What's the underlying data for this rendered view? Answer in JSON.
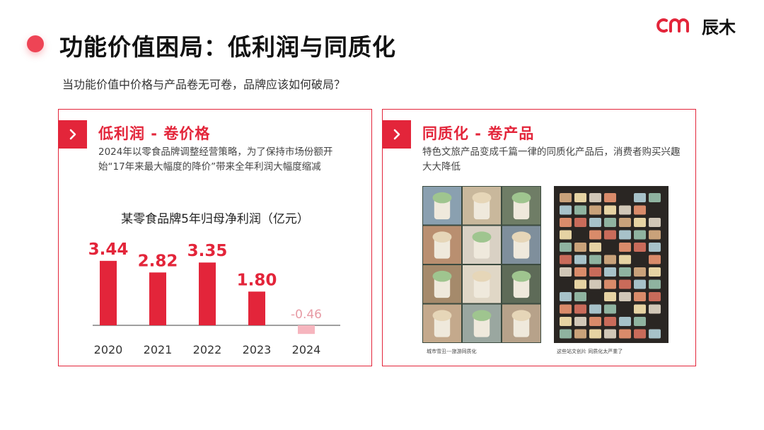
{
  "page_title": "功能价值困局：低利润与同质化",
  "brand": {
    "name": "辰木"
  },
  "subtitle": "当功能价值中价格与产品卷无可卷，品牌应该如何破局？",
  "left_card": {
    "heading": "低利润 - 卷价格",
    "description": "2024年以零食品牌调整经营策略，为了保持市场份额开始“17年来最大幅度的降价”带来全年利润大幅度缩减"
  },
  "right_card": {
    "heading": "同质化 - 卷产品",
    "description": "特色文旅产品变成千篇一律的同质化产品后，消费者购买兴趣大大降低",
    "caption_a": "城市雪丑---旅游同质化",
    "caption_b": "这些站文创片 同质化太严重了"
  },
  "colors": {
    "accent": "#e3253a",
    "negative": "#f6b5be",
    "label_negative": "#e79aa4"
  },
  "chart_data": {
    "type": "bar",
    "title": "某零食品牌5年归母净利润（亿元）",
    "categories": [
      "2020",
      "2021",
      "2022",
      "2023",
      "2024"
    ],
    "values": [
      3.44,
      2.82,
      3.35,
      1.8,
      -0.46
    ],
    "value_labels": [
      "3.44",
      "2.82",
      "3.35",
      "1.80",
      "-0.46"
    ],
    "ylim": [
      -0.6,
      3.6
    ],
    "grid": false
  }
}
